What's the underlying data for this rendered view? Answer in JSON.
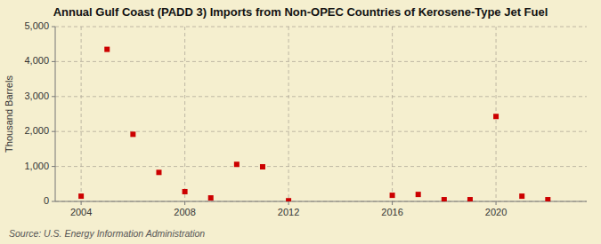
{
  "chart_data": {
    "type": "scatter",
    "title": "Annual Gulf Coast (PADD 3) Imports from Non-OPEC Countries of Kerosene-Type Jet Fuel",
    "ylabel": "Thousand Barrels",
    "source": "Source: U.S. Energy Information Administration",
    "x": [
      2004,
      2005,
      2006,
      2007,
      2008,
      2009,
      2010,
      2011,
      2012,
      2016,
      2017,
      2018,
      2019,
      2020,
      2021,
      2022
    ],
    "values": [
      150,
      4350,
      1920,
      830,
      280,
      100,
      1060,
      990,
      20,
      175,
      200,
      50,
      50,
      2430,
      150,
      50
    ],
    "color": "#cc0000",
    "marker": "square",
    "xlim": [
      2003.0,
      2023.5
    ],
    "ylim": [
      0,
      5000
    ],
    "xticks": [
      2004,
      2008,
      2012,
      2016,
      2020
    ],
    "yticks": [
      0,
      {
        "value": 1000,
        "label": "1,000"
      },
      {
        "value": 2000,
        "label": "2,000"
      },
      {
        "value": 3000,
        "label": "3,000"
      },
      {
        "value": 4000,
        "label": "4,000"
      },
      {
        "value": 5000,
        "label": "5,000"
      }
    ],
    "grid": true
  }
}
